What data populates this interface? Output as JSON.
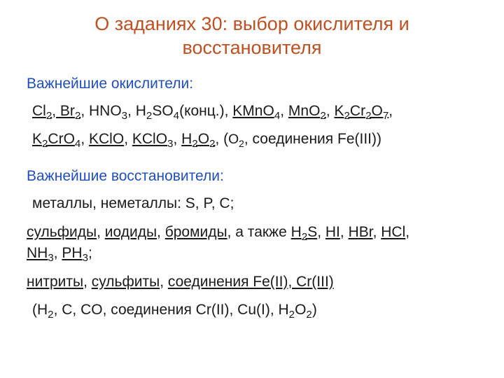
{
  "colors": {
    "title": "#c05020",
    "section": "#1f4fbf",
    "body": "#1a1a1a",
    "background": "#ffffff"
  },
  "fontsizes": {
    "title": 27,
    "section": 21,
    "body": 21
  },
  "title_line1": "О заданиях 30: выбор окислителя и",
  "title_line2": "восстановителя",
  "oxidizers_head": "Важнейшие окислители:",
  "reducers_head": "Важнейшие восстановители:",
  "ox": {
    "Cl2_Br2": "Cl",
    "Br": ", Br",
    "HNO3_pre": ", HNO",
    "H2SO4_pre": ", H",
    "SO4": "SO",
    "konc": "(конц.), ",
    "KMnO4": "KMnO",
    "MnO2_pre": ", ",
    "MnO2": "MnO",
    "K2Cr2O7_pre": ", ",
    "K2Cr2O7_a": "K",
    "K2Cr2O7_b": "Cr",
    "K2Cr2O7_c": "O",
    "comma": ",",
    "K2CrO4_a": "K",
    "K2CrO4_b": "CrO",
    "KClO_pre": ", ",
    "KClO": "KClO",
    "KClO3_pre": ", ",
    "KClO3": "KClO",
    "H2O2_pre": ", ",
    "H2O2_a": "H",
    "H2O2_b": "O",
    "tail_open": ", (",
    "O2small": "O",
    "tail_feiii": ", соединения Fe(III))"
  },
  "red": {
    "line1": "металлы, неметаллы: S, P, C;",
    "sulf": "сульфиды",
    "sep1": ", ",
    "iod": "иодиды",
    "sep2": ", ",
    "brom": "бромиды",
    "also": ", а также ",
    "H2S_a": "H",
    "H2S_b": "S",
    "HI": "HI",
    "HBr_pre": ", ",
    "HBr": "HBr",
    "HCl_pre": ", ",
    "HCl": "HCl",
    "comma_end": ",",
    "NH3_a": "NH",
    "PH3_pre": ", ",
    "PH3_a": "PH",
    "semic": ";",
    "nitr": "нитриты",
    "sulfit": "сульфиты",
    "feii": "соединения Fe(II), Cr(III)",
    "last_open": "(H",
    "last_mid": ", C, CO, соединения Cr(II), Cu(I), H",
    "last_O": "O",
    "last_close": ")"
  },
  "subs": {
    "2": "2",
    "3": "3",
    "4": "4",
    "7": "7"
  }
}
